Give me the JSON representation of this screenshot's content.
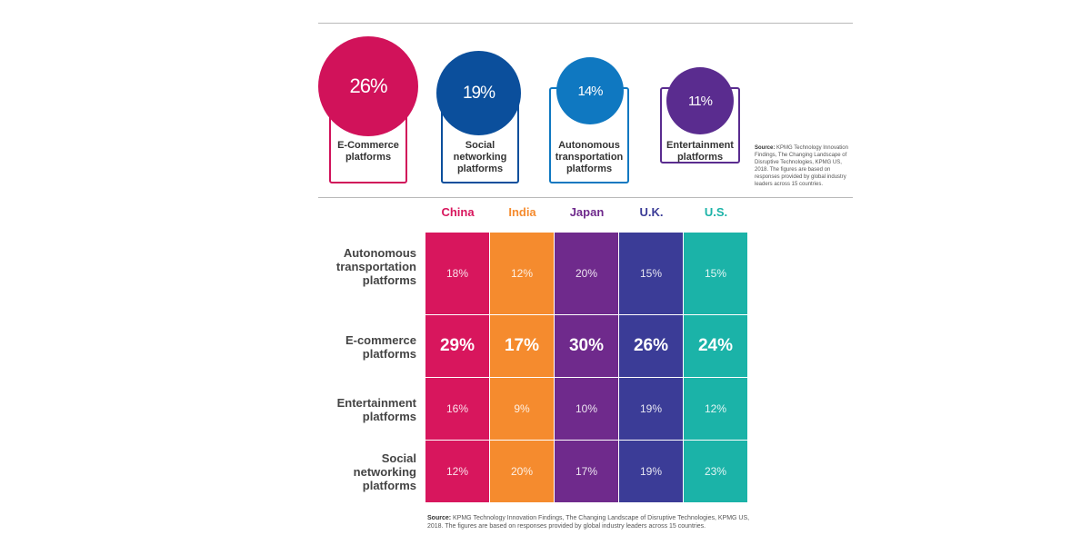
{
  "top_section": {
    "cards": [
      {
        "value": "26%",
        "label_lines": [
          "E-Commerce",
          "platforms"
        ],
        "color": "#d1125a"
      },
      {
        "value": "19%",
        "label_lines": [
          "Social",
          "networking",
          "platforms"
        ],
        "color": "#0b4f9c"
      },
      {
        "value": "14%",
        "label_lines": [
          "Autonomous",
          "transportation",
          "platforms"
        ],
        "color": "#0f78c1"
      },
      {
        "value": "11%",
        "label_lines": [
          "Entertainment",
          "platforms"
        ],
        "color": "#5a2c8f"
      }
    ],
    "source_label": "Source:",
    "source_text": "KPMG Technology Innovation Findings, The Changing Landscape of Disruptive Technologies, KPMG US, 2018. The figures are based on responses provided by global industry leaders across 15 countries."
  },
  "chart_data": {
    "type": "table",
    "columns": [
      "China",
      "India",
      "Japan",
      "U.K.",
      "U.S."
    ],
    "column_colors": [
      "#d8165d",
      "#f58b2e",
      "#6f2a8c",
      "#3b3c97",
      "#1bb3a8"
    ],
    "rows": [
      {
        "label_lines": [
          "Autonomous",
          "transportation",
          "platforms"
        ],
        "values": [
          "18%",
          "12%",
          "20%",
          "15%",
          "15%"
        ],
        "emphasis": false
      },
      {
        "label_lines": [
          "E-commerce",
          "platforms"
        ],
        "values": [
          "29%",
          "17%",
          "30%",
          "26%",
          "24%"
        ],
        "emphasis": true
      },
      {
        "label_lines": [
          "Entertainment",
          "platforms"
        ],
        "values": [
          "16%",
          "9%",
          "10%",
          "19%",
          "12%"
        ],
        "emphasis": false
      },
      {
        "label_lines": [
          "Social",
          "networking",
          "platforms"
        ],
        "values": [
          "12%",
          "20%",
          "17%",
          "19%",
          "23%"
        ],
        "emphasis": false
      }
    ],
    "source_label": "Source:",
    "source_text": "KPMG Technology Innovation Findings, The Changing Landscape of Disruptive Technologies, KPMG US, 2018. The figures are based on responses provided by global industry leaders across 15 countries."
  }
}
